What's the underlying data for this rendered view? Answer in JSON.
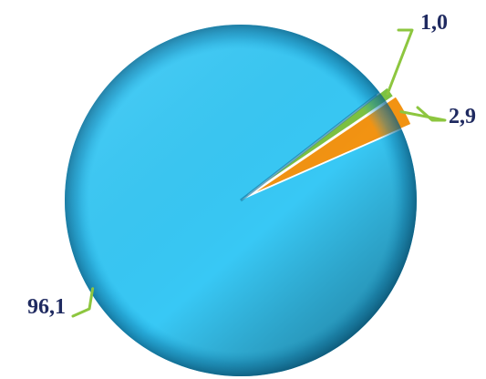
{
  "chart_data": {
    "type": "pie",
    "title": "",
    "slices": [
      {
        "label": "96,1",
        "value": 96.1,
        "color": "#38c8f5"
      },
      {
        "label": "1,0",
        "value": 1.0,
        "color": "#7cc242"
      },
      {
        "label": "2,9",
        "value": 2.9,
        "color": "#f29312"
      }
    ],
    "legend": "none",
    "style": "3d-beveled"
  }
}
